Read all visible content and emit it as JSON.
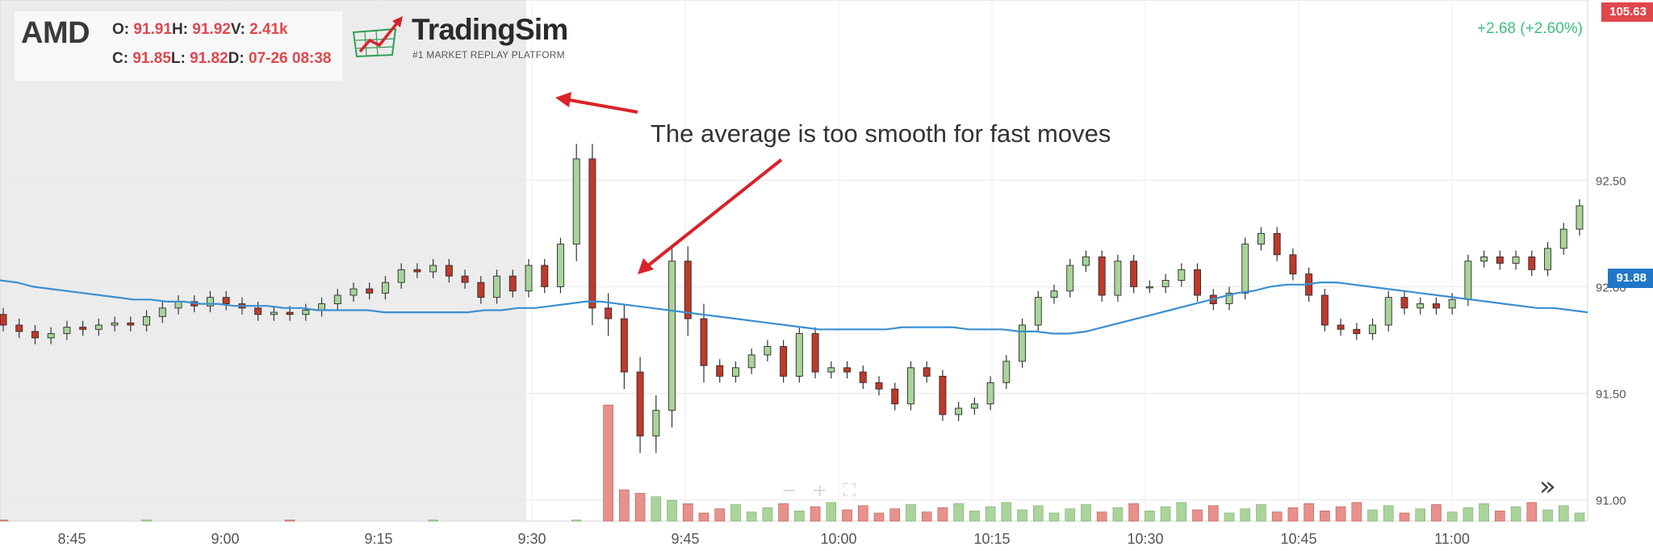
{
  "header": {
    "symbol": "AMD",
    "open_label": "O:",
    "open": "91.91",
    "high_label": "H:",
    "high": "91.92",
    "volume_label": "V:",
    "volume": "2.41k",
    "close_label": "C:",
    "close": "91.85",
    "low_label": "L:",
    "low": "91.82",
    "date_label": "D:",
    "date": "07-26 08:38"
  },
  "brand": {
    "name": "TradingSim",
    "tagline": "#1 MARKET REPLAY PLATFORM"
  },
  "change_text": "+2.68 (+2.60%)",
  "annotation": "The average is too smooth for fast moves",
  "price_badges": {
    "top": "105.63",
    "ma": "91.88"
  },
  "toolbar": {
    "zoom_out": "−",
    "zoom_in": "+",
    "fit": "⛶",
    "fast_forward": "»"
  },
  "colors": {
    "up": "#a9d49a",
    "down": "#c0392b",
    "ma": "#3a8fd0",
    "arrow": "#d9222a",
    "premarket_shade": "#e9e9e9"
  },
  "chart_data": {
    "type": "candlestick",
    "bar_interval_min": 1,
    "x_ticks": [
      "8:45",
      "9:00",
      "9:15",
      "9:30",
      "9:45",
      "10:00",
      "10:15",
      "10:30",
      "10:45",
      "11:00"
    ],
    "y_ticks": [
      "92.50",
      "92.00",
      "91.50",
      "91.00"
    ],
    "y_range": [
      90.9,
      93.3
    ],
    "shaded_until": "9:30",
    "ma_values": [
      92.03,
      92.02,
      92.0,
      91.99,
      91.98,
      91.97,
      91.96,
      91.95,
      91.94,
      91.94,
      91.93,
      91.93,
      91.92,
      91.92,
      91.91,
      91.91,
      91.91,
      91.9,
      91.9,
      91.89,
      91.89,
      91.89,
      91.89,
      91.88,
      91.88,
      91.88,
      91.88,
      91.88,
      91.88,
      91.89,
      91.89,
      91.9,
      91.9,
      91.91,
      91.92,
      91.93,
      91.93,
      91.92,
      91.91,
      91.9,
      91.89,
      91.88,
      91.87,
      91.86,
      91.85,
      91.84,
      91.83,
      91.82,
      91.81,
      91.8,
      91.8,
      91.8,
      91.8,
      91.8,
      91.81,
      91.81,
      91.81,
      91.81,
      91.8,
      91.8,
      91.8,
      91.79,
      91.79,
      91.78,
      91.78,
      91.79,
      91.81,
      91.83,
      91.85,
      91.87,
      91.89,
      91.91,
      91.93,
      91.95,
      91.97,
      91.98,
      92.0,
      92.01,
      92.01,
      92.02,
      92.02,
      92.01,
      92.0,
      91.99,
      91.98,
      91.97,
      91.96,
      91.95,
      91.94,
      91.93,
      91.92,
      91.91,
      91.9,
      91.9,
      91.89,
      91.88
    ],
    "candles": [
      [
        91.87,
        91.82
      ],
      [
        91.82,
        91.79
      ],
      [
        91.79,
        91.76
      ],
      [
        91.76,
        91.78
      ],
      [
        91.78,
        91.81
      ],
      [
        91.81,
        91.8
      ],
      [
        91.8,
        91.82
      ],
      [
        91.82,
        91.83
      ],
      [
        91.83,
        91.82
      ],
      [
        91.82,
        91.86
      ],
      [
        91.86,
        91.9
      ],
      [
        91.9,
        91.93
      ],
      [
        91.93,
        91.91
      ],
      [
        91.91,
        91.95
      ],
      [
        91.95,
        91.92
      ],
      [
        91.92,
        91.9
      ],
      [
        91.9,
        91.87
      ],
      [
        91.87,
        91.88
      ],
      [
        91.88,
        91.87
      ],
      [
        91.87,
        91.89
      ],
      [
        91.89,
        91.92
      ],
      [
        91.92,
        91.96
      ],
      [
        91.96,
        91.99
      ],
      [
        91.99,
        91.97
      ],
      [
        91.97,
        92.02
      ],
      [
        92.02,
        92.08
      ],
      [
        92.08,
        92.07
      ],
      [
        92.07,
        92.1
      ],
      [
        92.1,
        92.05
      ],
      [
        92.05,
        92.02
      ],
      [
        92.02,
        91.95
      ],
      [
        91.95,
        92.05
      ],
      [
        92.05,
        91.98
      ],
      [
        91.98,
        92.1
      ],
      [
        92.1,
        92.0
      ],
      [
        92.0,
        92.2
      ],
      [
        92.2,
        92.6
      ],
      [
        92.6,
        91.9
      ],
      [
        91.9,
        91.85
      ],
      [
        91.85,
        91.6
      ],
      [
        91.6,
        91.3
      ],
      [
        91.3,
        91.42
      ],
      [
        91.42,
        92.12
      ],
      [
        92.12,
        91.85
      ],
      [
        91.85,
        91.63
      ],
      [
        91.63,
        91.58
      ],
      [
        91.58,
        91.62
      ],
      [
        91.62,
        91.68
      ],
      [
        91.68,
        91.72
      ],
      [
        91.72,
        91.58
      ],
      [
        91.58,
        91.78
      ],
      [
        91.78,
        91.6
      ],
      [
        91.6,
        91.62
      ],
      [
        91.62,
        91.6
      ],
      [
        91.6,
        91.55
      ],
      [
        91.55,
        91.52
      ],
      [
        91.52,
        91.45
      ],
      [
        91.45,
        91.62
      ],
      [
        91.62,
        91.58
      ],
      [
        91.58,
        91.4
      ],
      [
        91.4,
        91.43
      ],
      [
        91.43,
        91.45
      ],
      [
        91.45,
        91.55
      ],
      [
        91.55,
        91.65
      ],
      [
        91.65,
        91.82
      ],
      [
        91.82,
        91.95
      ],
      [
        91.95,
        91.98
      ],
      [
        91.98,
        92.1
      ],
      [
        92.1,
        92.14
      ],
      [
        92.14,
        91.96
      ],
      [
        91.96,
        92.12
      ],
      [
        92.12,
        92.0
      ],
      [
        92.0,
        92.0
      ],
      [
        92.0,
        92.03
      ],
      [
        92.03,
        92.08
      ],
      [
        92.08,
        91.96
      ],
      [
        91.96,
        91.92
      ],
      [
        91.92,
        91.97
      ],
      [
        91.97,
        92.2
      ],
      [
        92.2,
        92.25
      ],
      [
        92.25,
        92.15
      ],
      [
        92.15,
        92.06
      ],
      [
        92.06,
        91.96
      ],
      [
        91.96,
        91.82
      ],
      [
        91.82,
        91.8
      ],
      [
        91.8,
        91.78
      ],
      [
        91.78,
        91.82
      ],
      [
        91.82,
        91.95
      ],
      [
        91.95,
        91.9
      ],
      [
        91.9,
        91.92
      ],
      [
        91.92,
        91.9
      ],
      [
        91.9,
        91.94
      ],
      [
        91.94,
        92.12
      ],
      [
        92.12,
        92.14
      ],
      [
        92.14,
        92.11
      ],
      [
        92.11,
        92.14
      ],
      [
        92.14,
        92.08
      ],
      [
        92.08,
        92.18
      ],
      [
        92.18,
        92.27
      ],
      [
        92.27,
        92.38
      ]
    ]
  }
}
